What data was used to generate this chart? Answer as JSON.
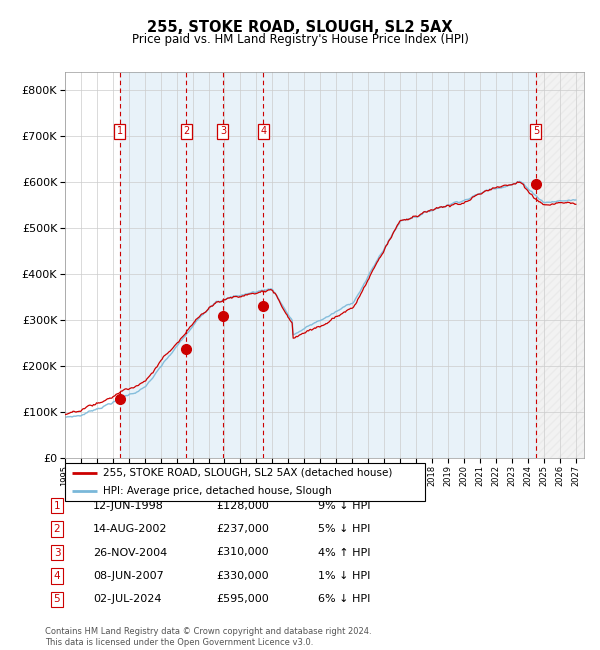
{
  "title": "255, STOKE ROAD, SLOUGH, SL2 5AX",
  "subtitle": "Price paid vs. HM Land Registry's House Price Index (HPI)",
  "legend_line1": "255, STOKE ROAD, SLOUGH, SL2 5AX (detached house)",
  "legend_line2": "HPI: Average price, detached house, Slough",
  "footer1": "Contains HM Land Registry data © Crown copyright and database right 2024.",
  "footer2": "This data is licensed under the Open Government Licence v3.0.",
  "hpi_color": "#7ab8d9",
  "price_color": "#cc0000",
  "sale_marker_color": "#cc0000",
  "transactions": [
    {
      "num": 1,
      "date": "12-JUN-1998",
      "price": 128000,
      "x_year": 1998.44,
      "pct": "9%",
      "dir": "↓"
    },
    {
      "num": 2,
      "date": "14-AUG-2002",
      "price": 237000,
      "x_year": 2002.62,
      "pct": "5%",
      "dir": "↓"
    },
    {
      "num": 3,
      "date": "26-NOV-2004",
      "price": 310000,
      "x_year": 2004.9,
      "pct": "4%",
      "dir": "↑"
    },
    {
      "num": 4,
      "date": "08-JUN-2007",
      "price": 330000,
      "x_year": 2007.44,
      "pct": "1%",
      "dir": "↓"
    },
    {
      "num": 5,
      "date": "02-JUL-2024",
      "price": 595000,
      "x_year": 2024.5,
      "pct": "6%",
      "dir": "↓"
    }
  ],
  "ylim": [
    0,
    840000
  ],
  "xlim_start": 1995.0,
  "xlim_end": 2027.5,
  "shade_start": 1998.44,
  "future_start": 2024.5,
  "table_rows": [
    [
      "1",
      "12-JUN-1998",
      "£128,000",
      "9% ↓ HPI"
    ],
    [
      "2",
      "14-AUG-2002",
      "£237,000",
      "5% ↓ HPI"
    ],
    [
      "3",
      "26-NOV-2004",
      "£310,000",
      "4% ↑ HPI"
    ],
    [
      "4",
      "08-JUN-2007",
      "£330,000",
      "1% ↓ HPI"
    ],
    [
      "5",
      "02-JUL-2024",
      "£595,000",
      "6% ↓ HPI"
    ]
  ]
}
